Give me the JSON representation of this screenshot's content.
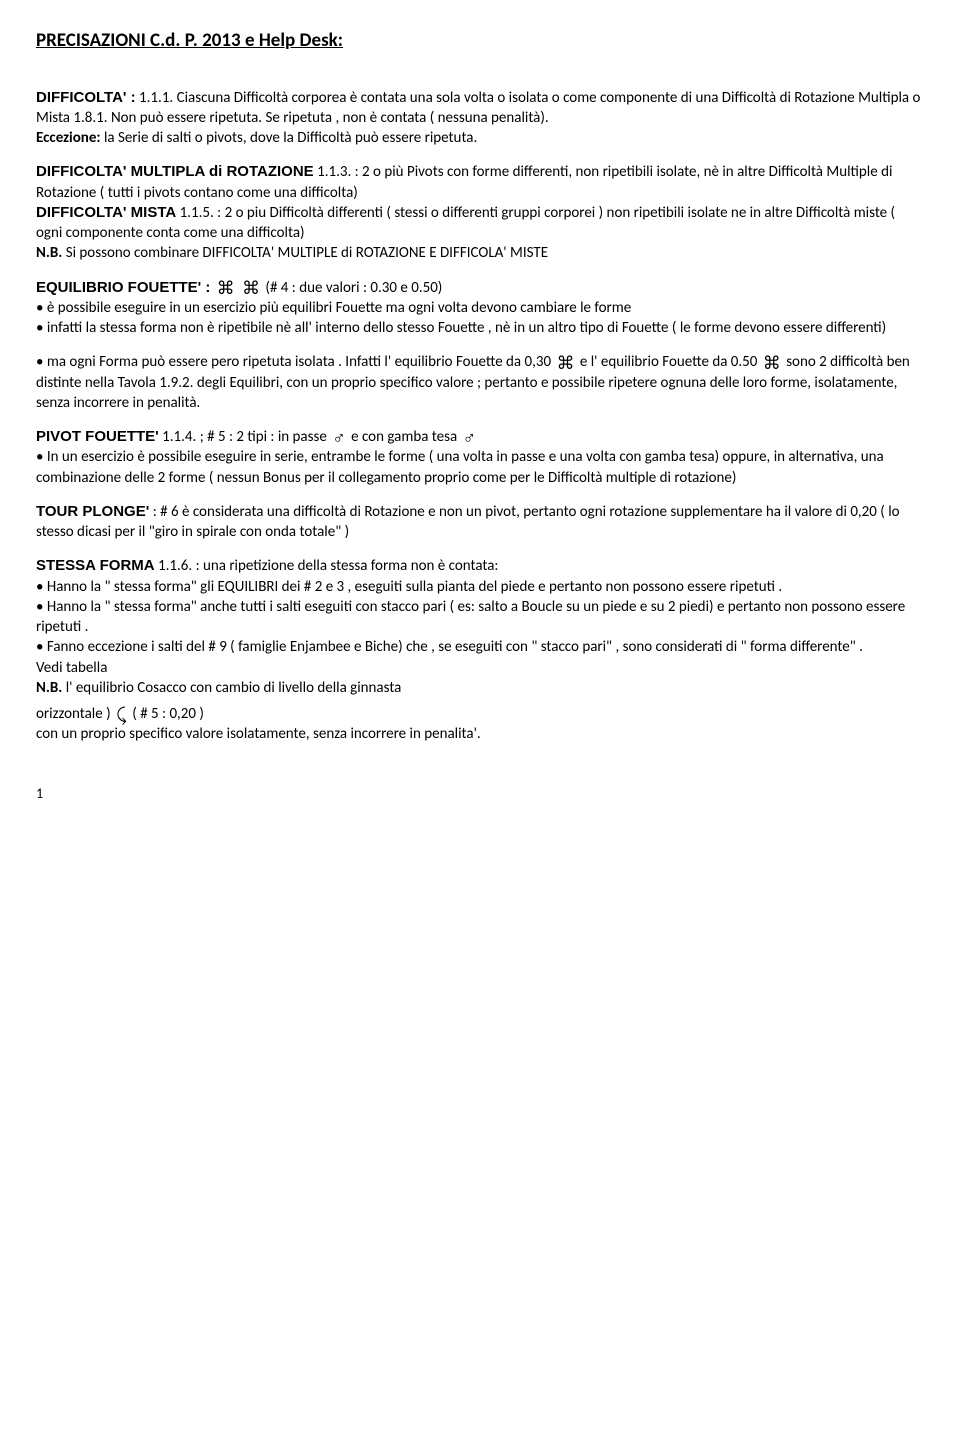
{
  "title": "PRECISAZIONI C.d. P. 2013 e Help Desk:",
  "difficolta": {
    "label": "DIFFICOLTA' :",
    "ref": " 1.1.1. ",
    "body": "Ciascuna Difficoltà corporea è contata una sola volta o isolata o come componente di una Difficoltà di Rotazione Multipla o Mista 1.8.1. Non può essere ripetuta. Se ripetuta , non è contata ( nessuna penalità).",
    "eccezione_label": "Eccezione:",
    "eccezione_body": " la Serie di salti o pivots, dove la Difficoltà può essere ripetuta."
  },
  "multipla": {
    "label": "DIFFICOLTA' MULTIPLA di ROTAZIONE",
    "ref": " 1.1.3. ",
    "body": ": 2 o più Pivots con forme differenti, non ripetibili isolate, nè in altre Difficoltà Multiple di Rotazione ( tutti i pivots contano come una difficolta)"
  },
  "mista": {
    "label": "DIFFICOLTA' MISTA",
    "ref": " 1.1.5. ",
    "body": ": 2 o piu Difficoltà differenti ( stessi o differenti gruppi corporei ) non ripetibili isolate ne in altre Difficoltà miste ( ogni componente conta come una difficolta)"
  },
  "nb1": {
    "label": "N.B.",
    "body": " Si possono combinare DIFFICOLTA' MULTIPLE di ROTAZIONE E DIFFICOLA' MISTE"
  },
  "equilibrio": {
    "label": "EQUILIBRIO FOUETTE' : ",
    "icon1": "⌘",
    "icon2": "⌘",
    "valori": "   (# 4 : due valori : 0.30 e 0.50)",
    "bullet1": "• è possibile eseguire in un esercizio più equilibri Fouette ma ogni volta devono cambiare le forme",
    "bullet2": "• infatti la stessa forma non è ripetibile nè all' interno dello stesso Fouette , nè in un altro tipo di Fouette ( le forme devono essere differenti)",
    "bullet3a": "• ma ogni Forma può essere pero ripetuta isolata . Infatti l' equilibrio Fouette da 0,30 ",
    "icon3": "⌘",
    "bullet3b": " e l' equilibrio Fouette da 0.50  ",
    "icon4": "⌘",
    "bullet3c": "  sono 2 difficoltà ben distinte nella Tavola 1.9.2. degli Equilibri, con un proprio specifico valore ; pertanto e possibile ripetere ognuna delle loro forme, isolatamente, senza incorrere in penalità."
  },
  "pivot": {
    "label": "PIVOT FOUETTE'",
    "ref": " 1.1.4. ; # 5 : 2 tipi : in passe  ",
    "icon1": "♂",
    "mid": "  e con gamba tesa  ",
    "icon2": "♂",
    "bullet": "• In un esercizio è possibile eseguire in serie, entrambe le forme ( una volta in passe e una volta con gamba tesa) oppure, in alternativa, una combinazione delle 2 forme ( nessun Bonus per il collegamento proprio come per le Difficoltà multiple di rotazione)"
  },
  "tour": {
    "label": "TOUR PLONGE'",
    "body": " : # 6 è considerata una difficoltà di Rotazione e non un pivot, pertanto ogni rotazione supplementare ha il valore di 0,20 ( lo stesso dicasi per il \"giro in spirale con onda totale\" )"
  },
  "stessa": {
    "label": "STESSA FORMA",
    "ref": " 1.1.6. ",
    "intro": ": una ripetizione della stessa forma non è contata:",
    "b1": "• Hanno la \" stessa forma\" gli EQUILIBRI dei # 2 e 3 , eseguiti sulla pianta del piede e pertanto non possono essere ripetuti .",
    "b2": "• Hanno la \" stessa forma\" anche tutti i salti eseguiti con stacco pari ( es: salto a Boucle su un piede e su 2 piedi) e pertanto non possono essere ripetuti .",
    "b3": "• Fanno eccezione i salti del # 9 ( famiglie Enjambee e Biche) che , se eseguiti con \" stacco pari\" , sono considerati di \" forma differente\" .",
    "tab": "Vedi tabella"
  },
  "nb2": {
    "label": "N.B.",
    "line1": " l' equilibrio Cosacco con cambio di livello della ginnasta",
    "line2a": "orizzontale )  ",
    "icon": "⤹",
    "line2b": "  ( # 5 : 0,20 )",
    "line3": "con un proprio specifico valore isolatamente, senza incorrere in penalita'."
  },
  "page": "1"
}
